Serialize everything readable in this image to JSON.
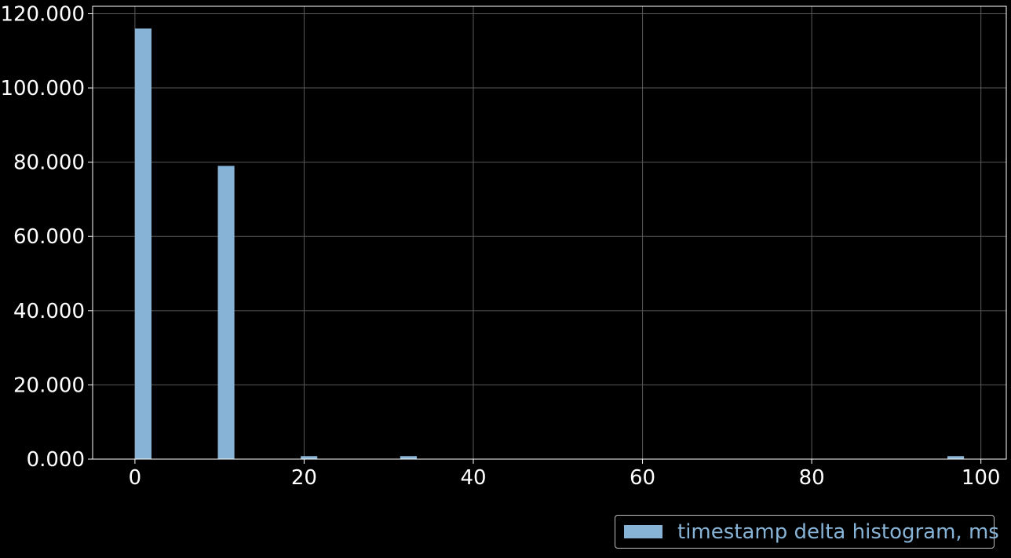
{
  "colors": {
    "background": "#000000",
    "bar": "#86b3d6",
    "grid": "#5a5a5a",
    "axes": "#ffffff",
    "tick_text": "#ffffff",
    "legend_text": "#86b3d6",
    "legend_border": "#bfbfbf"
  },
  "chart_data": {
    "type": "bar",
    "title": "",
    "xlabel": "",
    "ylabel": "",
    "xlim": [
      -5,
      103
    ],
    "ylim": [
      0,
      122
    ],
    "grid": true,
    "legend_placement": "bottom-right, outside plot",
    "x_ticks": [
      {
        "value": 0,
        "label": "0"
      },
      {
        "value": 20,
        "label": "20"
      },
      {
        "value": 40,
        "label": "40"
      },
      {
        "value": 60,
        "label": "60"
      },
      {
        "value": 80,
        "label": "80"
      },
      {
        "value": 100,
        "label": "100"
      }
    ],
    "y_ticks": [
      {
        "value": 0,
        "label": "0.000"
      },
      {
        "value": 20,
        "label": "20.000"
      },
      {
        "value": 40,
        "label": "40.000"
      },
      {
        "value": 60,
        "label": "60.000"
      },
      {
        "value": 80,
        "label": "80.000"
      },
      {
        "value": 100,
        "label": "100.000"
      },
      {
        "value": 120,
        "label": "120.000"
      }
    ],
    "series": [
      {
        "name": "timestamp delta histogram, ms",
        "bins": [
          {
            "start": 0,
            "end": 1.96,
            "value": 116
          },
          {
            "start": 9.8,
            "end": 11.76,
            "value": 79
          },
          {
            "start": 19.6,
            "end": 21.56,
            "value": 0.8
          },
          {
            "start": 31.36,
            "end": 33.32,
            "value": 0.8
          },
          {
            "start": 96.04,
            "end": 98.0,
            "value": 0.8
          }
        ]
      }
    ]
  }
}
